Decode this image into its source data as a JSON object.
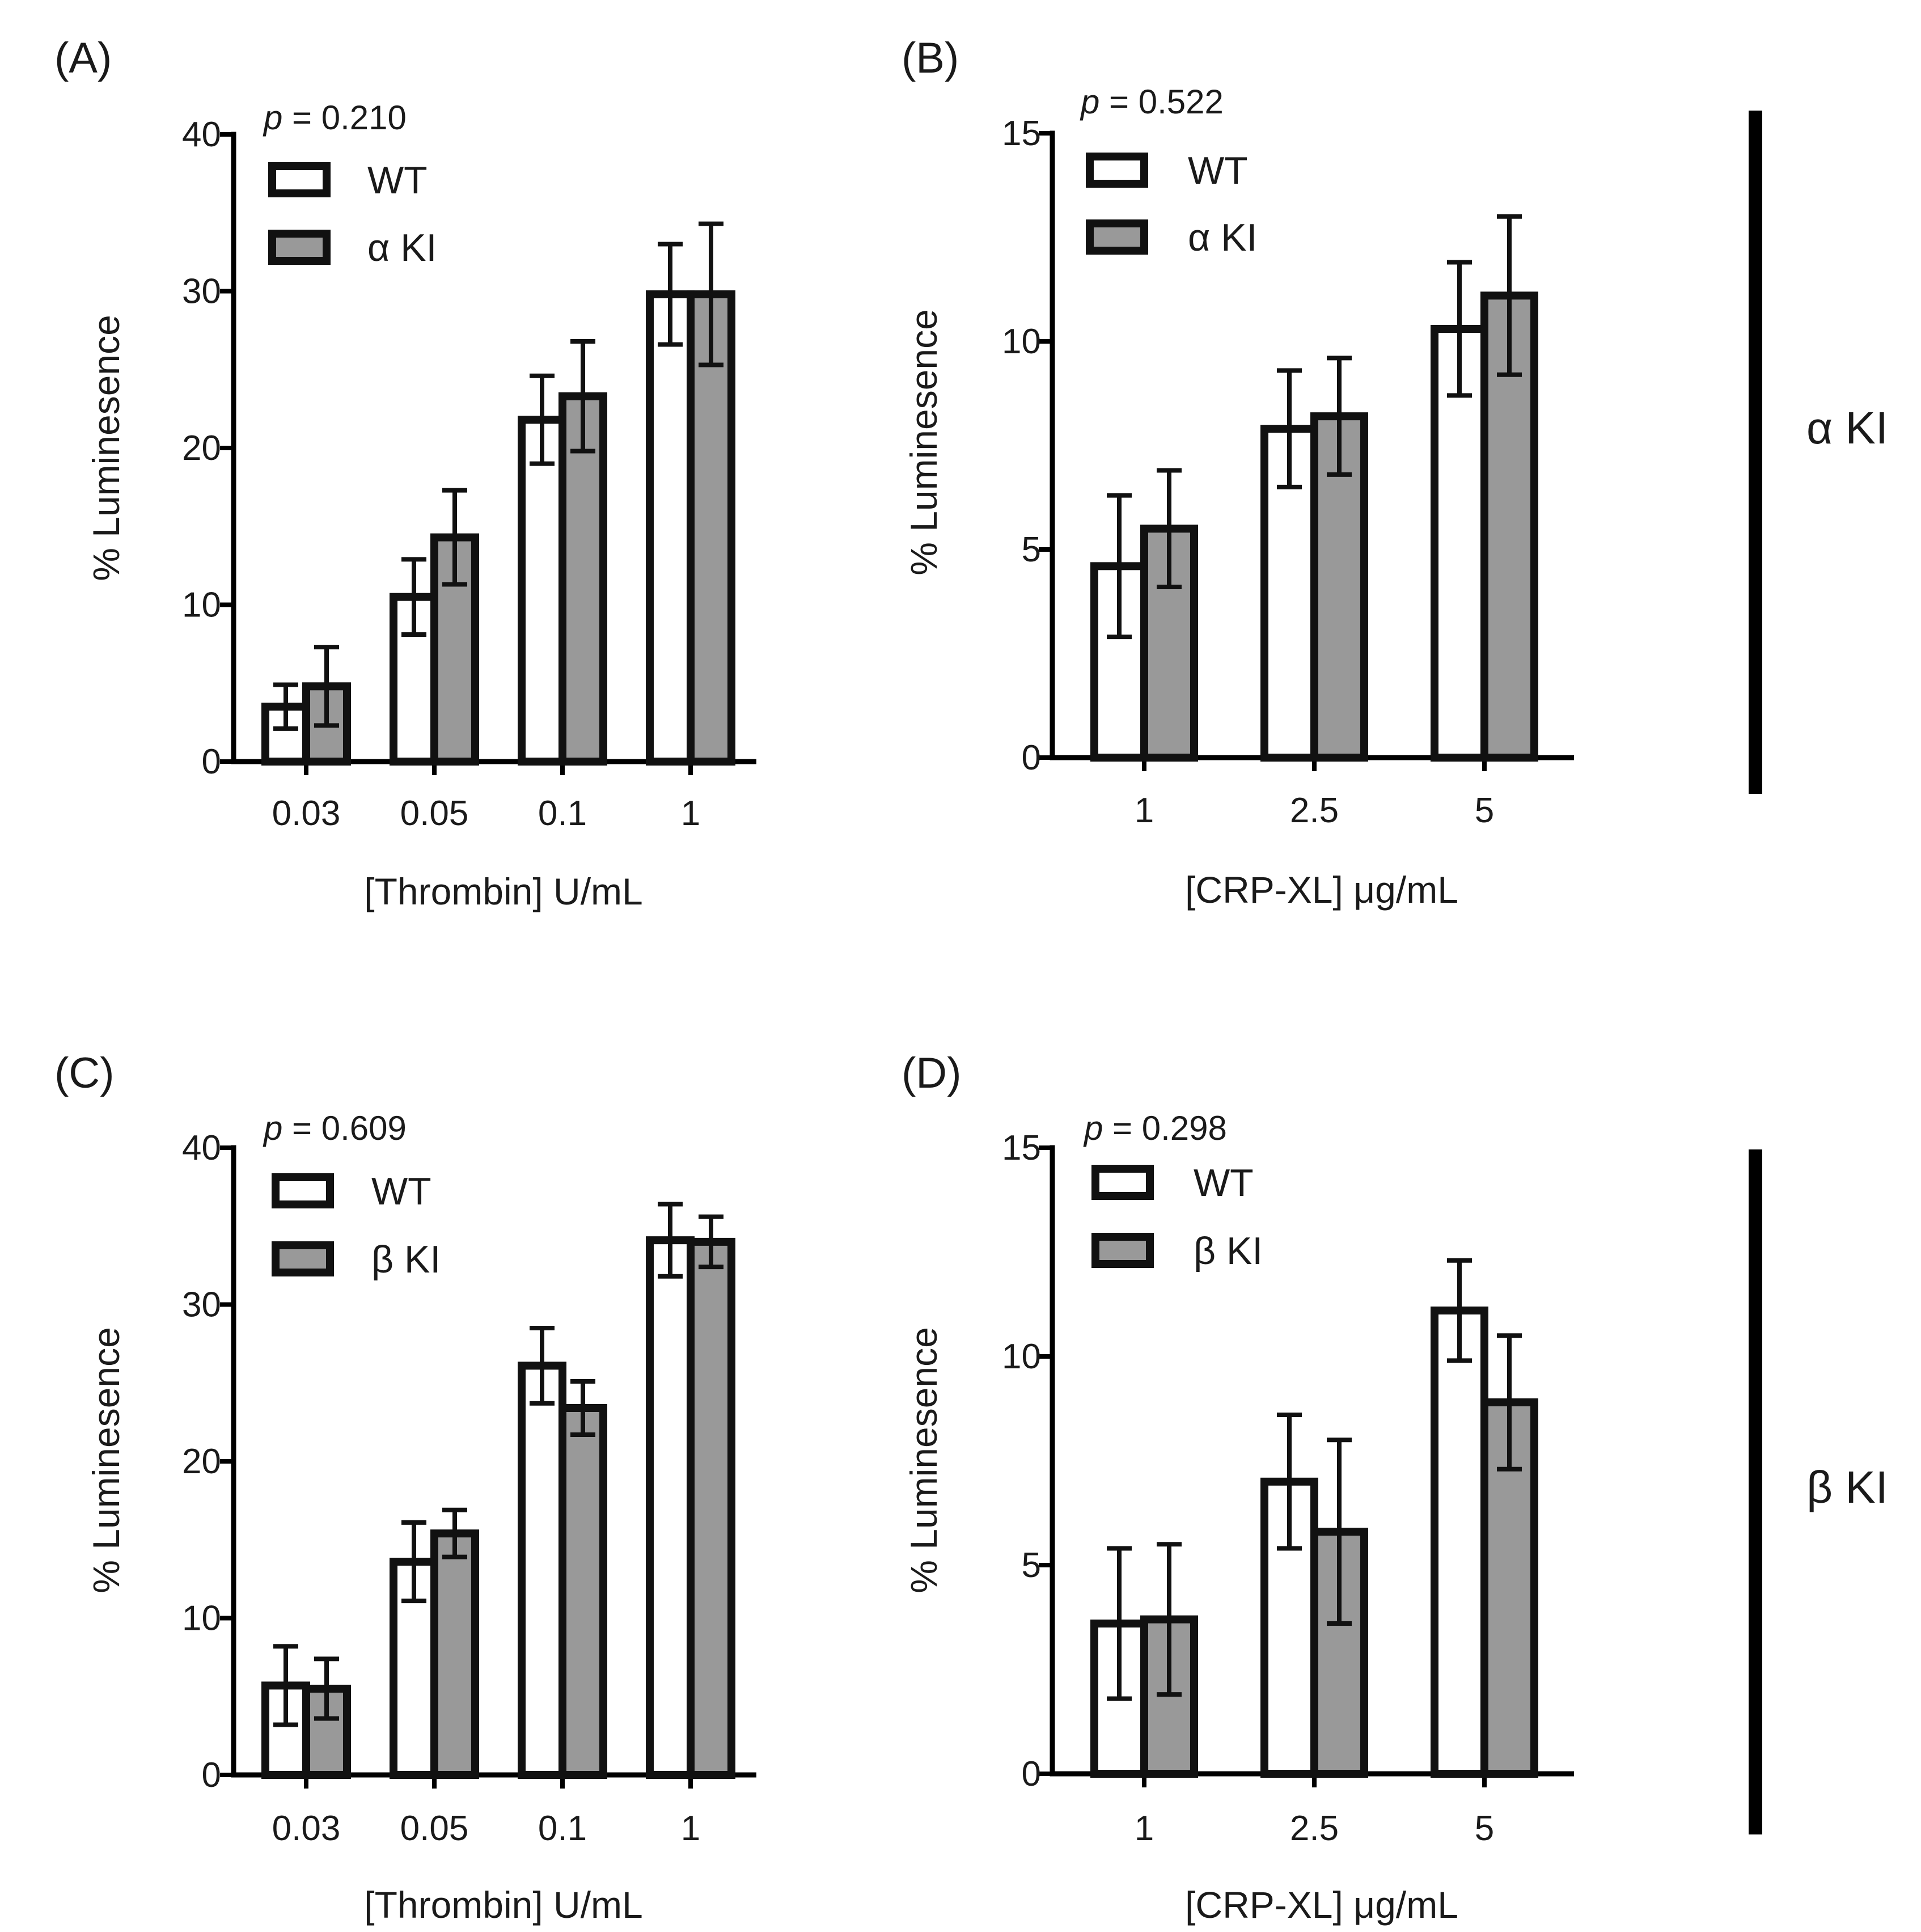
{
  "figure": {
    "side_labels": [
      "α KI",
      "β KI"
    ]
  },
  "colors": {
    "wt": "#ffffff",
    "ki": "#999999",
    "stroke": "#111111"
  },
  "chart_data": [
    {
      "panel": "(A)",
      "type": "bar",
      "p_prefix": "p",
      "p_value": " = 0.210",
      "categories": [
        "0.03",
        "0.05",
        "0.1",
        "1"
      ],
      "xlabel": "[Thrombin] U/mL",
      "ylabel": "% Luminesence",
      "ylim": [
        0,
        40
      ],
      "yticks": [
        "0",
        "10",
        "20",
        "30",
        "40"
      ],
      "ytick_values": [
        0,
        10,
        20,
        30,
        40
      ],
      "series": [
        {
          "name": "WT",
          "values": [
            3.5,
            10.5,
            21.8,
            29.8
          ],
          "errors": [
            1.4,
            2.4,
            2.8,
            3.2
          ]
        },
        {
          "name": "α KI",
          "values": [
            4.8,
            14.3,
            23.3,
            29.8
          ],
          "errors": [
            2.5,
            3.0,
            3.5,
            4.5
          ]
        }
      ]
    },
    {
      "panel": "(B)",
      "type": "bar",
      "p_prefix": "p",
      "p_value": " = 0.522",
      "categories": [
        "1",
        "2.5",
        "5"
      ],
      "xlabel": "[CRP-XL] μg/mL",
      "ylabel": "% Luminesence",
      "ylim": [
        0,
        15
      ],
      "yticks": [
        "0",
        "5",
        "10",
        "15"
      ],
      "ytick_values": [
        0,
        5,
        10,
        15
      ],
      "series": [
        {
          "name": "WT",
          "values": [
            4.6,
            7.9,
            10.3
          ],
          "errors": [
            1.7,
            1.4,
            1.6
          ]
        },
        {
          "name": "α KI",
          "values": [
            5.5,
            8.2,
            11.1
          ],
          "errors": [
            1.4,
            1.4,
            1.9
          ]
        }
      ]
    },
    {
      "panel": "(C)",
      "type": "bar",
      "p_prefix": "p",
      "p_value": " = 0.609",
      "categories": [
        "0.03",
        "0.05",
        "0.1",
        "1"
      ],
      "xlabel": "[Thrombin] U/mL",
      "ylabel": "% Luminesence",
      "ylim": [
        0,
        40
      ],
      "yticks": [
        "0",
        "10",
        "20",
        "30",
        "40"
      ],
      "ytick_values": [
        0,
        10,
        20,
        30,
        40
      ],
      "series": [
        {
          "name": "WT",
          "values": [
            5.7,
            13.6,
            26.1,
            34.1
          ],
          "errors": [
            2.5,
            2.5,
            2.4,
            2.3
          ]
        },
        {
          "name": "β KI",
          "values": [
            5.5,
            15.4,
            23.4,
            34.0
          ],
          "errors": [
            1.9,
            1.5,
            1.7,
            1.6
          ]
        }
      ]
    },
    {
      "panel": "(D)",
      "type": "bar",
      "p_prefix": "p",
      "p_value": " = 0.298",
      "categories": [
        "1",
        "2.5",
        "5"
      ],
      "xlabel": "[CRP-XL] μg/mL",
      "ylabel": "% Luminesence",
      "ylim": [
        0,
        15
      ],
      "yticks": [
        "0",
        "5",
        "10",
        "15"
      ],
      "ytick_values": [
        0,
        5,
        10,
        15
      ],
      "series": [
        {
          "name": "WT",
          "values": [
            3.6,
            7.0,
            11.1
          ],
          "errors": [
            1.8,
            1.6,
            1.2
          ]
        },
        {
          "name": "β KI",
          "values": [
            3.7,
            5.8,
            8.9
          ],
          "errors": [
            1.8,
            2.2,
            1.6
          ]
        }
      ]
    }
  ]
}
